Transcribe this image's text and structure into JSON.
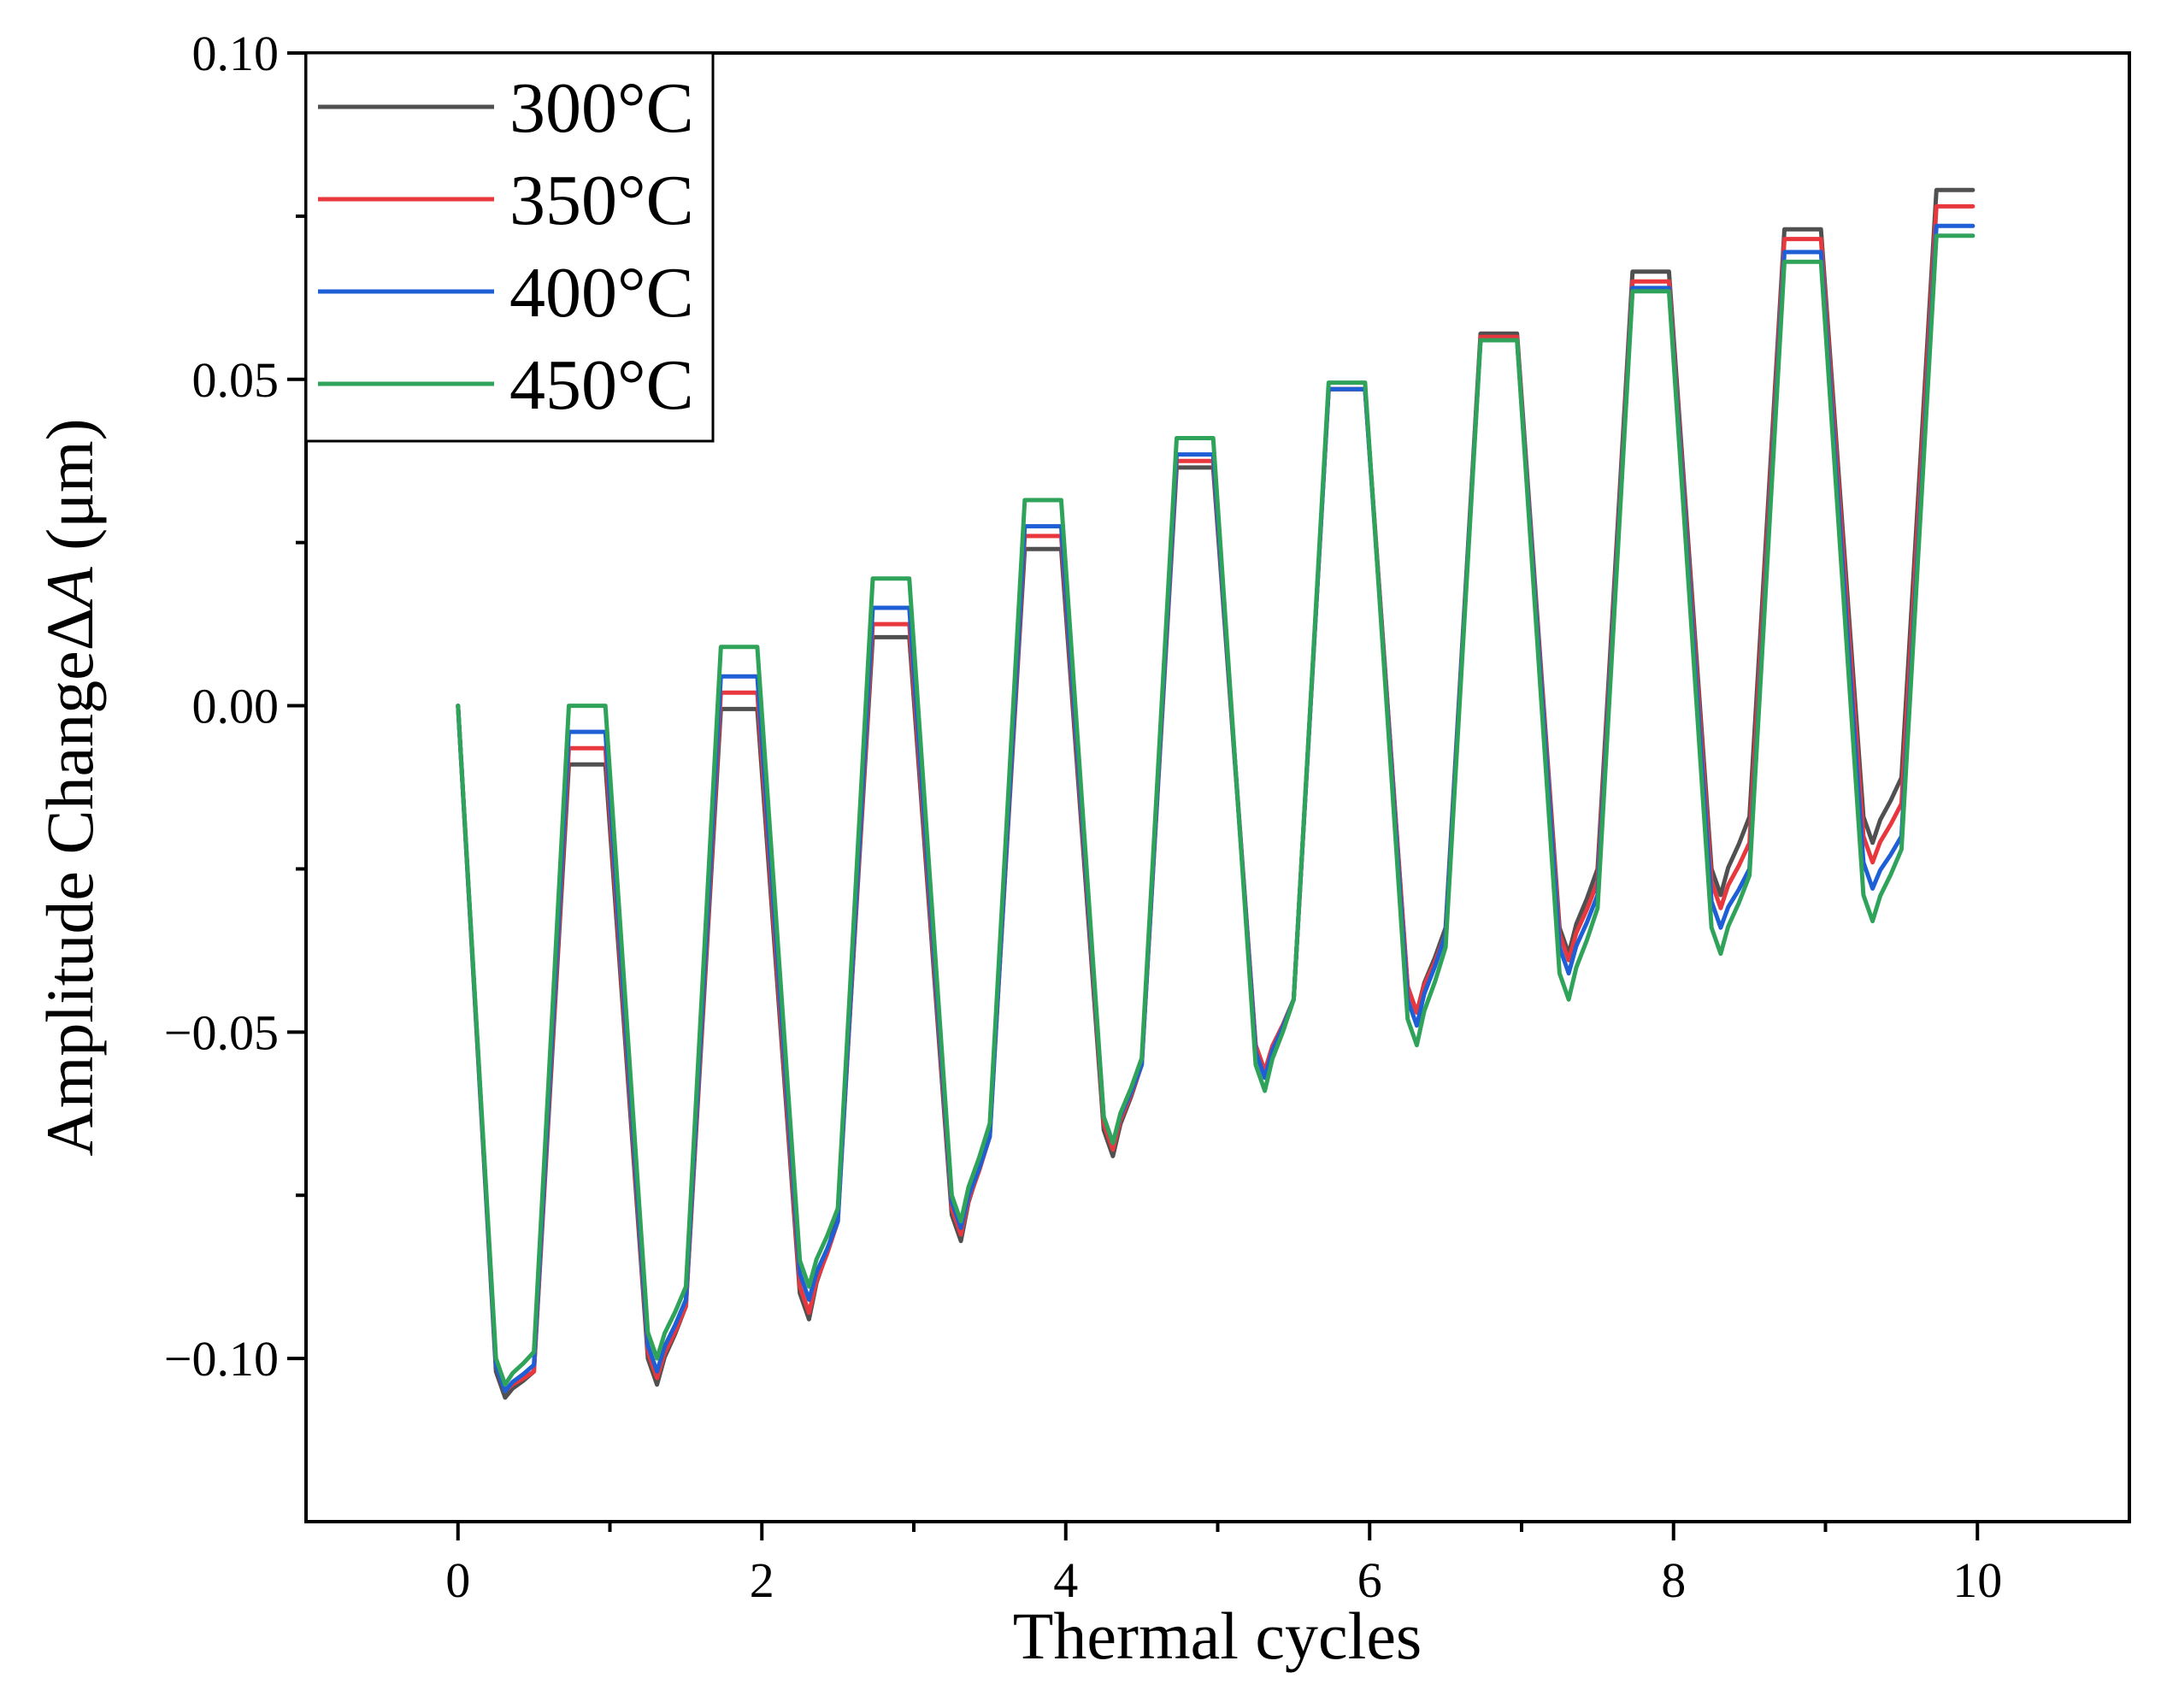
{
  "chart_data": {
    "type": "line",
    "title": "",
    "xlabel": "Thermal cycles",
    "ylabel_main": "Amplitude Change",
    "ylabel_symbol": "Δ",
    "ylabel_var": "A",
    "ylabel_unit": " (μm)",
    "xlim": [
      -1,
      11
    ],
    "ylim": [
      -0.125,
      0.1
    ],
    "x_ticks": [
      0,
      2,
      4,
      6,
      8,
      10
    ],
    "x_tick_labels": [
      "0",
      "2",
      "4",
      "6",
      "8",
      "10"
    ],
    "x_minor_ticks": [
      1,
      3,
      5,
      7,
      9
    ],
    "y_ticks": [
      -0.1,
      -0.05,
      0.0,
      0.05,
      0.1
    ],
    "y_tick_labels": [
      "−0.10",
      "−0.05",
      "0.00",
      "0.05",
      "0.10"
    ],
    "y_minor_ticks": [
      -0.075,
      -0.025,
      0.025,
      0.075
    ],
    "legend_position": "top-left",
    "series": [
      {
        "name": "300°C",
        "color": "#505050",
        "peaks": [
          -0.009,
          -0.0005,
          0.0105,
          0.024,
          0.0365,
          0.0485,
          0.057,
          0.0665,
          0.073,
          0.079
        ],
        "troughs": [
          -0.106,
          -0.104,
          -0.094,
          -0.082,
          -0.069,
          -0.056,
          -0.047,
          -0.038,
          -0.029,
          -0.021
        ],
        "shoulders": [
          -0.102,
          -0.092,
          -0.078,
          -0.065,
          -0.055,
          -0.045,
          -0.034,
          -0.025,
          -0.017,
          -0.011
        ]
      },
      {
        "name": "350°C",
        "color": "#e8383d",
        "peaks": [
          -0.0065,
          0.002,
          0.0125,
          0.026,
          0.0375,
          0.0485,
          0.0565,
          0.065,
          0.0715,
          0.0765
        ],
        "troughs": [
          -0.105,
          -0.103,
          -0.093,
          -0.081,
          -0.068,
          -0.056,
          -0.047,
          -0.039,
          -0.031,
          -0.024
        ],
        "shoulders": [
          -0.102,
          -0.092,
          -0.079,
          -0.066,
          -0.055,
          -0.045,
          -0.035,
          -0.027,
          -0.021,
          -0.015
        ]
      },
      {
        "name": "400°C",
        "color": "#1f5fd6",
        "peaks": [
          -0.004,
          0.0045,
          0.015,
          0.0275,
          0.0385,
          0.0485,
          0.056,
          0.064,
          0.0695,
          0.0735
        ],
        "troughs": [
          -0.105,
          -0.102,
          -0.091,
          -0.08,
          -0.067,
          -0.057,
          -0.049,
          -0.041,
          -0.034,
          -0.028
        ],
        "shoulders": [
          -0.101,
          -0.091,
          -0.079,
          -0.066,
          -0.055,
          -0.045,
          -0.035,
          -0.029,
          -0.025,
          -0.02
        ]
      },
      {
        "name": "450°C",
        "color": "#2fa35a",
        "peaks": [
          0.0,
          0.009,
          0.0195,
          0.0315,
          0.041,
          0.0495,
          0.056,
          0.0635,
          0.068,
          0.072
        ],
        "troughs": [
          -0.104,
          -0.1,
          -0.089,
          -0.079,
          -0.067,
          -0.059,
          -0.052,
          -0.045,
          -0.038,
          -0.033
        ],
        "shoulders": [
          -0.099,
          -0.089,
          -0.077,
          -0.064,
          -0.054,
          -0.045,
          -0.037,
          -0.031,
          -0.026,
          -0.022
        ]
      }
    ]
  }
}
